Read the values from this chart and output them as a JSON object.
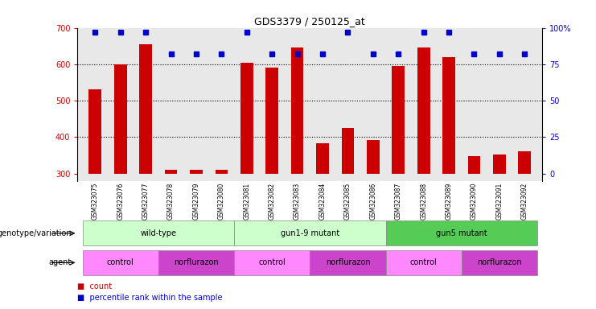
{
  "title": "GDS3379 / 250125_at",
  "samples": [
    "GSM323075",
    "GSM323076",
    "GSM323077",
    "GSM323078",
    "GSM323079",
    "GSM323080",
    "GSM323081",
    "GSM323082",
    "GSM323083",
    "GSM323084",
    "GSM323085",
    "GSM323086",
    "GSM323087",
    "GSM323088",
    "GSM323089",
    "GSM323090",
    "GSM323091",
    "GSM323092"
  ],
  "counts": [
    530,
    600,
    655,
    310,
    310,
    310,
    605,
    590,
    645,
    382,
    425,
    392,
    595,
    645,
    620,
    348,
    352,
    362
  ],
  "percentile_ranks": [
    97,
    97,
    97,
    82,
    82,
    82,
    97,
    82,
    82,
    82,
    97,
    82,
    82,
    97,
    97,
    82,
    82,
    82
  ],
  "y_min": 280,
  "y_max": 700,
  "bar_color": "#cc0000",
  "marker_color": "#0000cc",
  "plot_bg_color": "#e8e8e8",
  "yticks": [
    300,
    400,
    500,
    600,
    700
  ],
  "dotted_lines": [
    400,
    500,
    600
  ],
  "right_ticks_pct": [
    0,
    25,
    50,
    75,
    100
  ],
  "right_ticks_y": [
    300,
    400,
    500,
    600,
    700
  ],
  "genotype_groups": [
    {
      "label": "wild-type",
      "start": 0,
      "end": 6,
      "color": "#ccffcc"
    },
    {
      "label": "gun1-9 mutant",
      "start": 6,
      "end": 12,
      "color": "#ccffcc"
    },
    {
      "label": "gun5 mutant",
      "start": 12,
      "end": 18,
      "color": "#55cc55"
    }
  ],
  "agent_groups": [
    {
      "label": "control",
      "start": 0,
      "end": 3,
      "color": "#ff88ff"
    },
    {
      "label": "norflurazon",
      "start": 3,
      "end": 6,
      "color": "#cc44cc"
    },
    {
      "label": "control",
      "start": 6,
      "end": 9,
      "color": "#ff88ff"
    },
    {
      "label": "norflurazon",
      "start": 9,
      "end": 12,
      "color": "#cc44cc"
    },
    {
      "label": "control",
      "start": 12,
      "end": 15,
      "color": "#ff88ff"
    },
    {
      "label": "norflurazon",
      "start": 15,
      "end": 18,
      "color": "#cc44cc"
    }
  ]
}
